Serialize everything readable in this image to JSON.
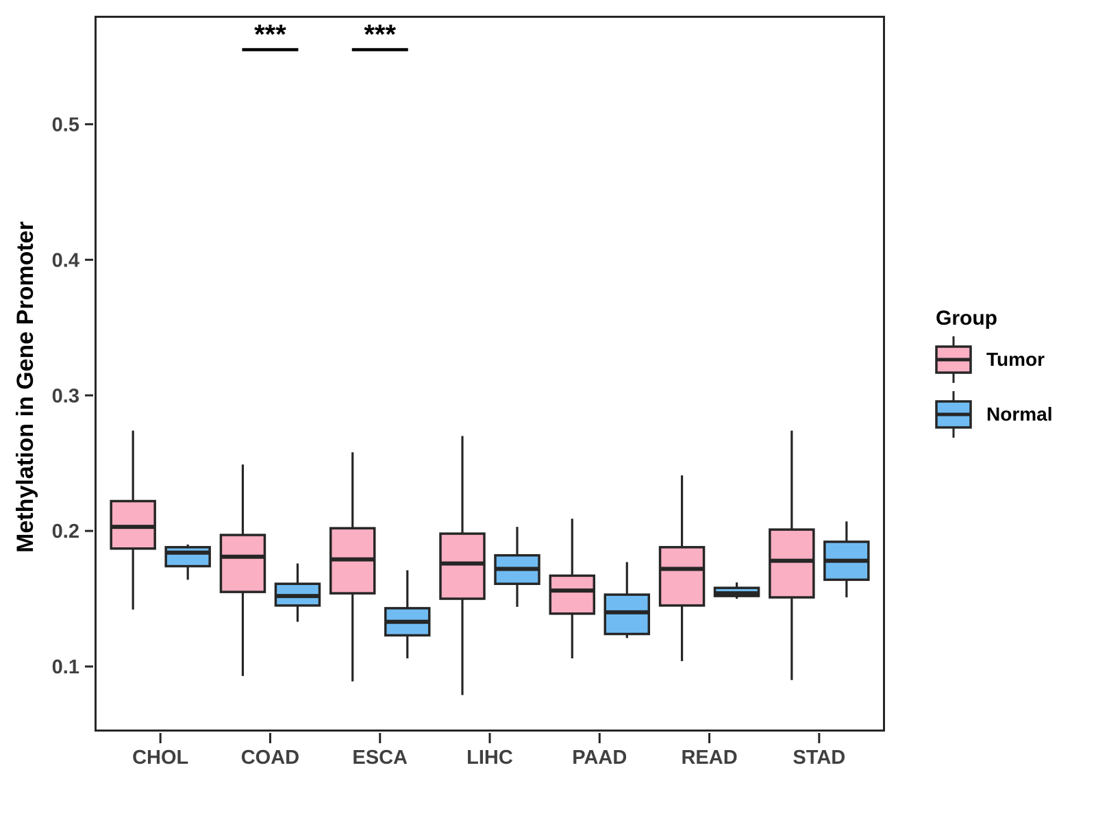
{
  "chart_data": {
    "type": "boxplot",
    "orientation": "vertical",
    "title": "",
    "xlabel": "",
    "ylabel": "Methylation in Gene Promoter",
    "categories": [
      "CHOL",
      "COAD",
      "ESCA",
      "LIHC",
      "PAAD",
      "READ",
      "STAD"
    ],
    "y_ticks": [
      0.1,
      0.2,
      0.3,
      0.4,
      0.5
    ],
    "y_tick_labels": [
      "0.1",
      "0.2",
      "0.3",
      "0.4",
      "0.5"
    ],
    "ylim": [
      0.052,
      0.58
    ],
    "grid": false,
    "legend": {
      "title": "Group",
      "position": "right"
    },
    "colors": {
      "tumor_fill": "#FBAFC2",
      "normal_fill": "#70BCF2",
      "stroke": "#262626",
      "axis_text": "#404040"
    },
    "series": [
      {
        "name": "Tumor",
        "fill": "#FBAFC2",
        "boxes": [
          {
            "category": "CHOL",
            "min": 0.142,
            "q1": 0.187,
            "median": 0.203,
            "q3": 0.222,
            "max": 0.274
          },
          {
            "category": "COAD",
            "min": 0.093,
            "q1": 0.155,
            "median": 0.181,
            "q3": 0.197,
            "max": 0.249
          },
          {
            "category": "ESCA",
            "min": 0.089,
            "q1": 0.154,
            "median": 0.179,
            "q3": 0.202,
            "max": 0.258
          },
          {
            "category": "LIHC",
            "min": 0.079,
            "q1": 0.15,
            "median": 0.176,
            "q3": 0.198,
            "max": 0.27
          },
          {
            "category": "PAAD",
            "min": 0.106,
            "q1": 0.139,
            "median": 0.156,
            "q3": 0.167,
            "max": 0.209
          },
          {
            "category": "READ",
            "min": 0.104,
            "q1": 0.145,
            "median": 0.172,
            "q3": 0.188,
            "max": 0.241
          },
          {
            "category": "STAD",
            "min": 0.09,
            "q1": 0.151,
            "median": 0.178,
            "q3": 0.201,
            "max": 0.274
          }
        ]
      },
      {
        "name": "Normal",
        "fill": "#70BCF2",
        "boxes": [
          {
            "category": "CHOL",
            "min": 0.164,
            "q1": 0.174,
            "median": 0.184,
            "q3": 0.188,
            "max": 0.19
          },
          {
            "category": "COAD",
            "min": 0.133,
            "q1": 0.145,
            "median": 0.152,
            "q3": 0.161,
            "max": 0.176
          },
          {
            "category": "ESCA",
            "min": 0.106,
            "q1": 0.123,
            "median": 0.133,
            "q3": 0.143,
            "max": 0.171
          },
          {
            "category": "LIHC",
            "min": 0.144,
            "q1": 0.161,
            "median": 0.172,
            "q3": 0.182,
            "max": 0.203
          },
          {
            "category": "PAAD",
            "min": 0.121,
            "q1": 0.124,
            "median": 0.14,
            "q3": 0.153,
            "max": 0.177
          },
          {
            "category": "READ",
            "min": 0.15,
            "q1": 0.152,
            "median": 0.154,
            "q3": 0.158,
            "max": 0.162
          },
          {
            "category": "STAD",
            "min": 0.151,
            "q1": 0.164,
            "median": 0.178,
            "q3": 0.192,
            "max": 0.207
          }
        ]
      }
    ],
    "significance": [
      {
        "category": "COAD",
        "label": "***",
        "y": 0.555
      },
      {
        "category": "ESCA",
        "label": "***",
        "y": 0.555
      }
    ]
  }
}
